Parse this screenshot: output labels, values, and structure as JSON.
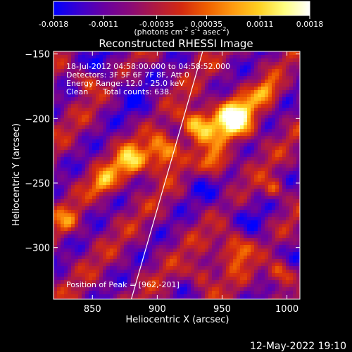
{
  "colorbar": {
    "ticks": [
      "-0.0018",
      "-0.0011",
      "-0.00035",
      "0.00035",
      "0.0011",
      "0.0018"
    ],
    "tick_values": [
      -0.0018,
      -0.0011,
      -0.00035,
      0.00035,
      0.0011,
      0.0018
    ],
    "range": [
      -0.0018,
      0.0018
    ],
    "units_label": "(photons cm",
    "units_exp1": "-2",
    "units_mid": " s",
    "units_exp2": "-1",
    "units_tail": " asec",
    "units_exp3": "-2",
    "units_close": ")",
    "gradient_colors": [
      "#0000ff",
      "#3a00d0",
      "#6a00a0",
      "#8a0a78",
      "#b01a40",
      "#d42a10",
      "#f06000",
      "#ff9a10",
      "#ffd020",
      "#ffff80",
      "#ffffff"
    ]
  },
  "chart_data": {
    "type": "heatmap",
    "title": "Reconstructed RHESSI Image",
    "xlabel": "Heliocentric X (arcsec)",
    "ylabel": "Heliocentric Y (arcsec)",
    "xlim": [
      820,
      1010
    ],
    "ylim": [
      -340,
      -148
    ],
    "xticks": [
      850,
      900,
      950,
      1000
    ],
    "yticks": [
      -150,
      -200,
      -250,
      -300
    ],
    "xtick_labels": [
      "850",
      "900",
      "950",
      "1000"
    ],
    "ytick_labels": [
      "−150",
      "−200",
      "−250",
      "−300"
    ],
    "info": {
      "line1": "18-Jul-2012 04:58:00.000 to 04:58:52.000",
      "line2": "Detectors: 3F 5F 6F 7F 8F, Att 0",
      "line3": "Energy Range: 12.0 - 25.0 keV",
      "line4a": "Clean",
      "line4b": "Total counts: 638."
    },
    "peak_label": "Position of Peak = [962,-201]",
    "peak": [
      962,
      -201
    ],
    "limb_line": [
      [
        880,
        -340
      ],
      [
        935,
        -148
      ]
    ],
    "grid": false
  },
  "footer": {
    "timestamp": "12-May-2022 19:10"
  }
}
